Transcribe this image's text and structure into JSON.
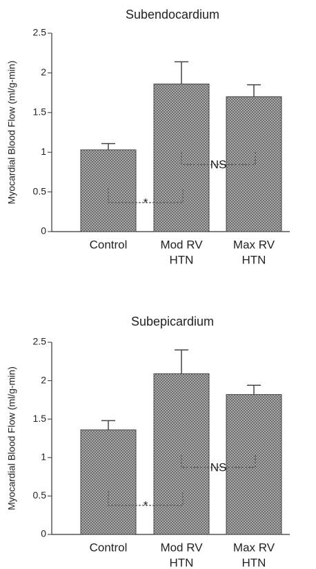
{
  "chart_data": [
    {
      "type": "bar",
      "title": "Subendocardium",
      "y_label": "Myocardial Blood Flow (ml/g-min)",
      "categories": [
        [
          "Control"
        ],
        [
          "Mod RV",
          "HTN"
        ],
        [
          "Max RV",
          "HTN"
        ]
      ],
      "values": [
        1.03,
        1.86,
        1.7
      ],
      "errors": [
        0.08,
        0.28,
        0.15
      ],
      "color": "#9a9a9a",
      "ylim": [
        0,
        2.5
      ],
      "yticks": [
        0,
        0.5,
        1,
        1.5,
        2,
        2.5
      ],
      "annotations": [
        "*",
        "NS"
      ]
    },
    {
      "type": "bar",
      "title": "Subepicardium",
      "y_label": "Myocardial Blood Flow (ml/g-min)",
      "categories": [
        [
          "Control"
        ],
        [
          "Mod RV",
          "HTN"
        ],
        [
          "Max RV",
          "HTN"
        ]
      ],
      "values": [
        1.36,
        2.09,
        1.82
      ],
      "errors": [
        0.12,
        0.31,
        0.12
      ],
      "color": "#9a9a9a",
      "ylim": [
        0,
        2.5
      ],
      "yticks": [
        0,
        0.5,
        1,
        1.5,
        2,
        2.5
      ],
      "annotations": [
        "*",
        "NS"
      ]
    }
  ]
}
